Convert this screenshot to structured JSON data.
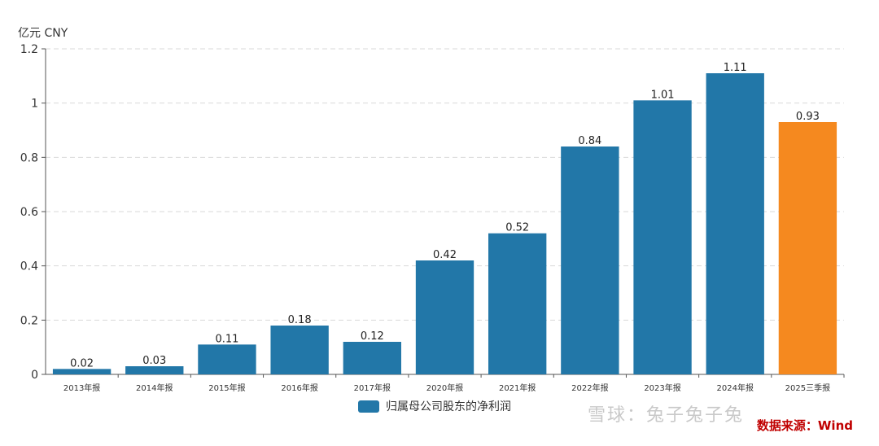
{
  "chart_data": {
    "type": "bar",
    "unit_label": "亿元  CNY",
    "categories": [
      "2013年报",
      "2014年报",
      "2015年报",
      "2016年报",
      "2017年报",
      "2020年报",
      "2021年报",
      "2022年报",
      "2023年报",
      "2024年报",
      "2025三季报"
    ],
    "values": [
      0.02,
      0.03,
      0.11,
      0.18,
      0.12,
      0.42,
      0.52,
      0.84,
      1.01,
      1.11,
      0.93
    ],
    "value_labels": [
      "0.02",
      "0.03",
      "0.11",
      "0.18",
      "0.12",
      "0.42",
      "0.52",
      "0.84",
      "1.01",
      "1.11",
      "0.93"
    ],
    "y_ticks": [
      "0",
      "0.2",
      "0.4",
      "0.6",
      "0.8",
      "1",
      "1.2"
    ],
    "ylim": [
      0,
      1.2
    ],
    "grid": true,
    "legend": {
      "label": "归属母公司股东的净利润",
      "position": "bottom"
    },
    "colors": {
      "primary": "#2277a8",
      "highlight": "#f5891f",
      "grid": "#d9d9d9",
      "axis": "#555555"
    },
    "highlight_index": 10
  },
  "source": {
    "text": "数据来源：Wind",
    "color": "#c00000"
  },
  "watermark": {
    "text": "雪球：兔子兔子兔"
  }
}
